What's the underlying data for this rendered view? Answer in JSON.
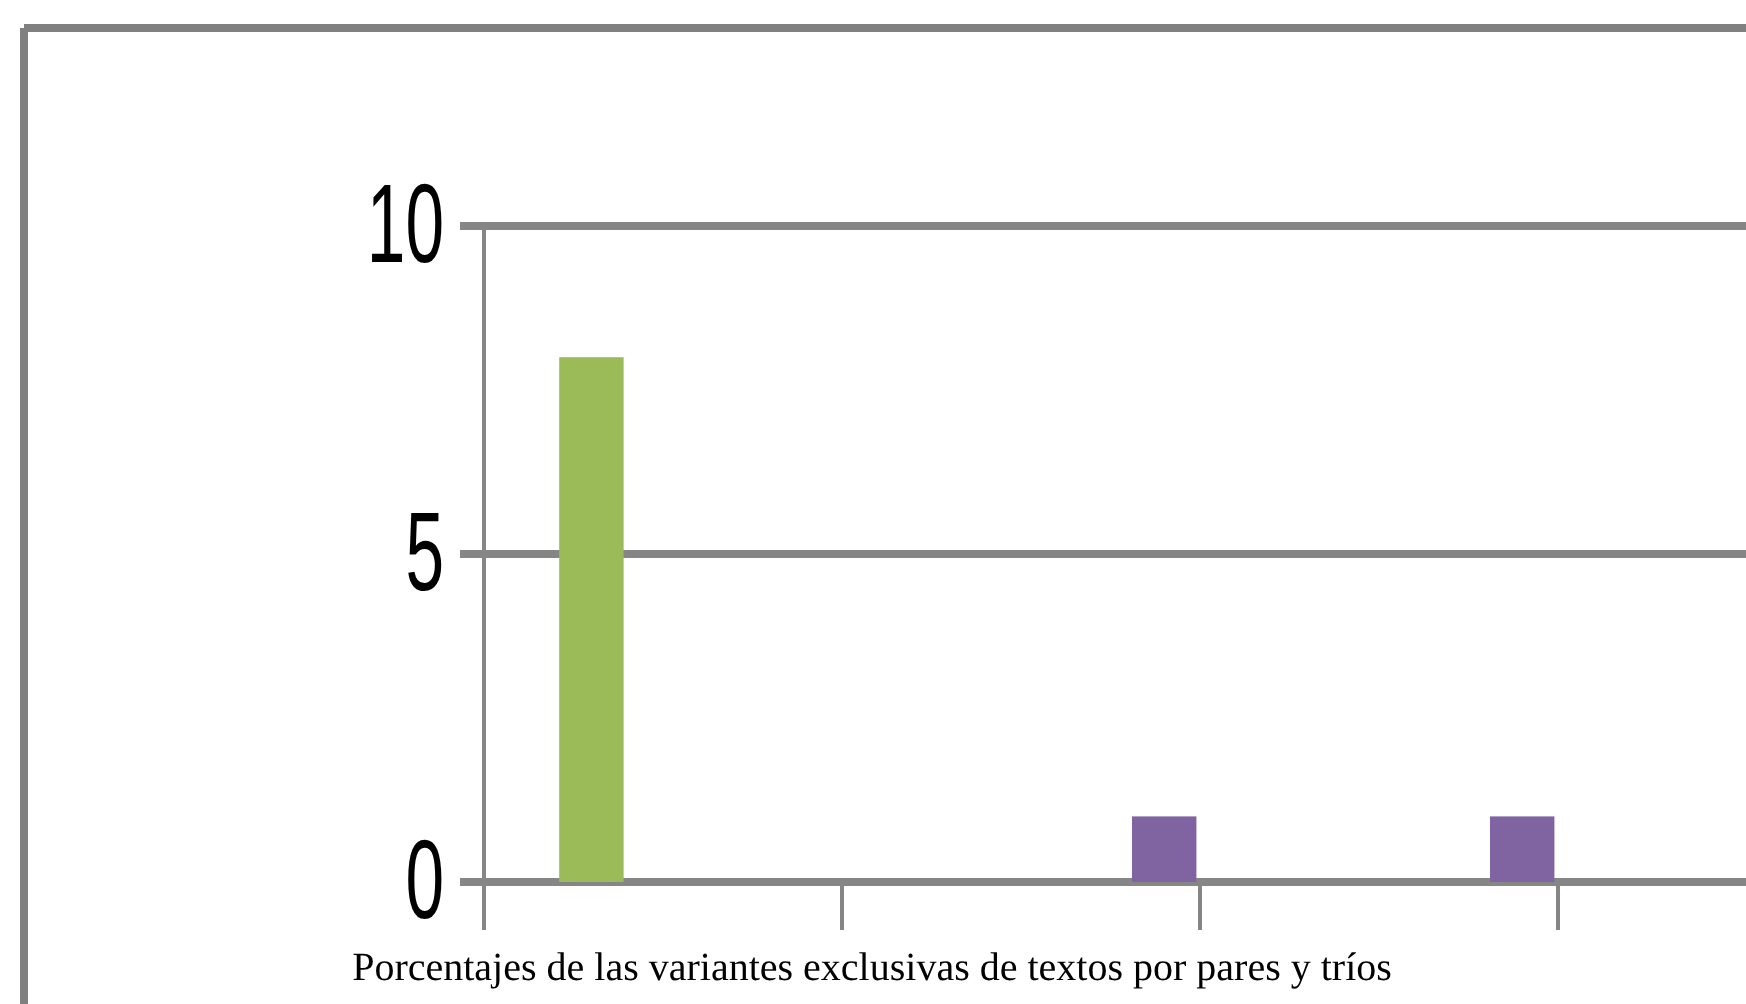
{
  "chart_data": {
    "type": "bar",
    "xlabel": "Porcentajes de las variantes exclusivas de textos por pares y tríos",
    "categories": [
      null,
      null,
      null
    ],
    "series": [
      {
        "color": "#9bbb59",
        "values": [
          8,
          0,
          0
        ]
      },
      {
        "color": "#8064a2",
        "values": [
          0,
          1,
          1
        ]
      }
    ],
    "ylim": [
      0,
      10
    ],
    "yticks": [
      0,
      5,
      10
    ],
    "grid": "y"
  }
}
